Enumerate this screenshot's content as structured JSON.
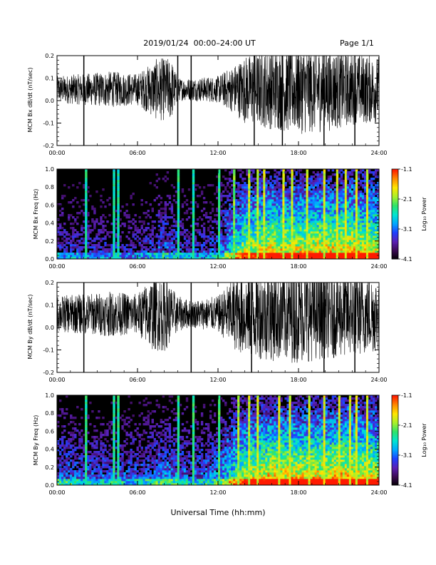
{
  "header": {
    "title": "2019/01/24  00:00–24:00 UT",
    "page": "Page 1/1"
  },
  "xlabel": "Universal Time (hh:mm)",
  "chart_data": [
    {
      "type": "line",
      "ylabel": "MCM Bx dB/dt (nT/sec)",
      "xlim": [
        "00:00",
        "24:00"
      ],
      "ylim": [
        -0.2,
        0.2
      ],
      "x_ticks": [
        "00:00",
        "06:00",
        "12:00",
        "18:00",
        "24:00"
      ],
      "y_ticks": [
        "-0.2",
        "-0.1",
        "0.0",
        "0.1",
        "0.2"
      ],
      "baseline": 0.05,
      "envelope_hours": [
        0,
        2,
        4,
        6,
        7.5,
        8.5,
        9,
        10,
        12,
        13,
        14,
        16,
        18,
        20,
        22,
        24
      ],
      "envelope_amplitude": [
        0.06,
        0.07,
        0.08,
        0.07,
        0.14,
        0.14,
        0.05,
        0.05,
        0.06,
        0.1,
        0.15,
        0.18,
        0.2,
        0.19,
        0.16,
        0.15
      ],
      "spikes_hours": [
        2.0,
        10.0,
        9.0,
        14.7,
        16.8,
        19.9,
        22.2
      ]
    },
    {
      "type": "heatmap",
      "ylabel": "MCM Bx Freq (Hz)",
      "xlim": [
        "00:00",
        "24:00"
      ],
      "ylim": [
        0.0,
        1.0
      ],
      "x_ticks": [
        "00:00",
        "06:00",
        "12:00",
        "18:00",
        "24:00"
      ],
      "y_ticks": [
        "0.0",
        "0.2",
        "0.4",
        "0.6",
        "0.8",
        "1.0"
      ],
      "colorbar_label": "Log₁₀ Power",
      "colorbar_ticks": [
        "-1.1",
        "-2.1",
        "-3.1",
        "-4.1"
      ],
      "colorbar_range": [
        -4.1,
        -1.1
      ],
      "activity_hours": [
        0,
        3,
        6,
        8,
        10,
        12,
        13,
        14,
        16,
        18,
        20,
        22,
        24
      ],
      "activity_level": [
        0.25,
        0.22,
        0.2,
        0.35,
        0.22,
        0.3,
        0.55,
        0.75,
        0.85,
        0.82,
        0.85,
        0.88,
        0.8
      ],
      "streaks_hours": [
        2.0,
        4.1,
        4.4,
        9.0,
        10.0,
        12.0,
        13.1,
        14.2,
        14.8,
        15.3,
        16.8,
        17.4,
        18.5,
        19.9,
        20.8,
        21.5,
        22.2,
        23.0
      ]
    },
    {
      "type": "line",
      "ylabel": "MCM By dB/dt (nT/sec)",
      "xlim": [
        "00:00",
        "24:00"
      ],
      "ylim": [
        -0.2,
        0.2
      ],
      "x_ticks": [
        "00:00",
        "06:00",
        "12:00",
        "18:00",
        "24:00"
      ],
      "y_ticks": [
        "-0.2",
        "-0.1",
        "0.0",
        "0.1",
        "0.2"
      ],
      "baseline": 0.06,
      "envelope_hours": [
        0,
        2,
        4,
        6,
        7,
        8,
        9,
        10,
        12,
        13,
        14,
        16,
        18,
        20,
        22,
        24
      ],
      "envelope_amplitude": [
        0.08,
        0.09,
        0.1,
        0.09,
        0.16,
        0.17,
        0.08,
        0.06,
        0.08,
        0.15,
        0.19,
        0.21,
        0.22,
        0.2,
        0.19,
        0.17
      ],
      "spikes_hours": [
        2.0,
        10.0,
        14.5,
        19.9,
        22.2
      ]
    },
    {
      "type": "heatmap",
      "ylabel": "MCM By Freq (Hz)",
      "xlim": [
        "00:00",
        "24:00"
      ],
      "ylim": [
        0.0,
        1.0
      ],
      "x_ticks": [
        "00:00",
        "06:00",
        "12:00",
        "18:00",
        "24:00"
      ],
      "y_ticks": [
        "0.0",
        "0.2",
        "0.4",
        "0.6",
        "0.8",
        "1.0"
      ],
      "colorbar_label": "Log₁₀ Power",
      "colorbar_ticks": [
        "-1.1",
        "-2.1",
        "-3.1",
        "-4.1"
      ],
      "colorbar_range": [
        -4.1,
        -1.1
      ],
      "activity_hours": [
        0,
        3,
        6,
        8,
        10,
        12,
        13,
        14,
        16,
        18,
        20,
        22,
        24
      ],
      "activity_level": [
        0.35,
        0.32,
        0.3,
        0.4,
        0.32,
        0.38,
        0.6,
        0.78,
        0.88,
        0.85,
        0.87,
        0.9,
        0.82
      ],
      "streaks_hours": [
        2.0,
        4.2,
        4.5,
        9.0,
        10.0,
        12.0,
        13.5,
        14.2,
        14.9,
        16.5,
        17.2,
        18.7,
        19.9,
        21.0,
        21.8,
        22.2,
        23.1
      ]
    }
  ],
  "colors": {
    "trace": "#000000",
    "colormap": [
      "#000000",
      "#3b0a52",
      "#5a1fb4",
      "#1e40ff",
      "#00a8ff",
      "#00e5d0",
      "#2fe36a",
      "#a8f02a",
      "#ffe600",
      "#ff8a00",
      "#ff1a00"
    ]
  }
}
